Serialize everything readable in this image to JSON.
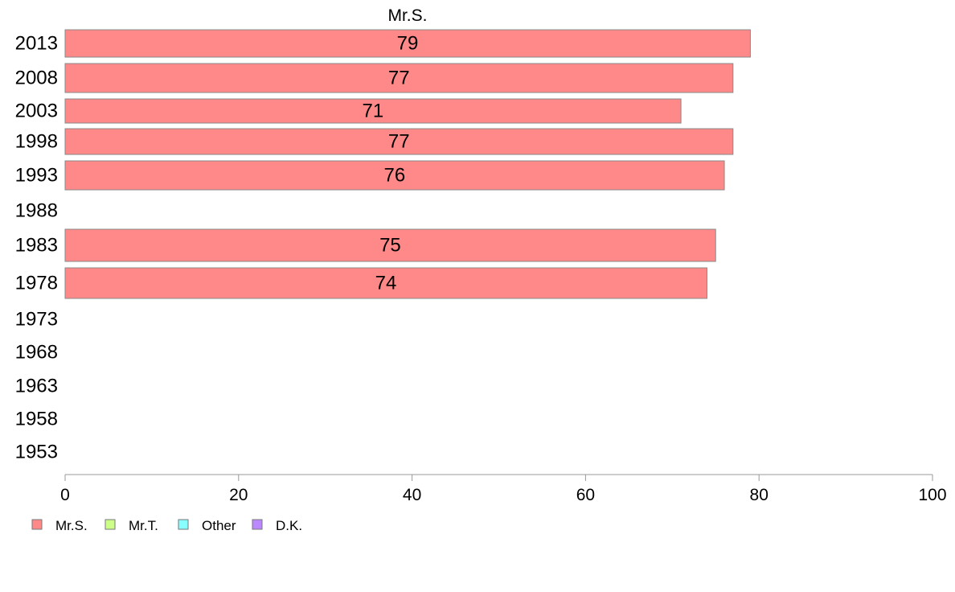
{
  "chart_data": {
    "type": "bar",
    "orientation": "horizontal",
    "title": "Mr.S.",
    "categories": [
      "2013",
      "2008",
      "2003",
      "1998",
      "1993",
      "1988",
      "1983",
      "1978",
      "1973",
      "1968",
      "1963",
      "1958",
      "1953"
    ],
    "series": [
      {
        "name": "Mr.S.",
        "color": "#ff8888",
        "values": [
          79,
          77,
          71,
          77,
          76,
          null,
          75,
          74,
          null,
          null,
          null,
          null,
          null
        ]
      }
    ],
    "data_labels": [
      "79",
      "77",
      "71",
      "77",
      "76",
      "",
      "75",
      "74",
      "",
      "",
      "",
      "",
      ""
    ],
    "xlim": [
      0,
      100
    ],
    "xticks": [
      0,
      20,
      40,
      60,
      80,
      100
    ],
    "xlabel": "",
    "ylabel": "",
    "grid": false,
    "legend": {
      "position": "bottom-left",
      "entries": [
        {
          "label": "Mr.S.",
          "color": "#ff8888"
        },
        {
          "label": "Mr.T.",
          "color": "#ccff88"
        },
        {
          "label": "Other",
          "color": "#88ffff"
        },
        {
          "label": "D.K.",
          "color": "#bb88ff"
        }
      ]
    }
  }
}
